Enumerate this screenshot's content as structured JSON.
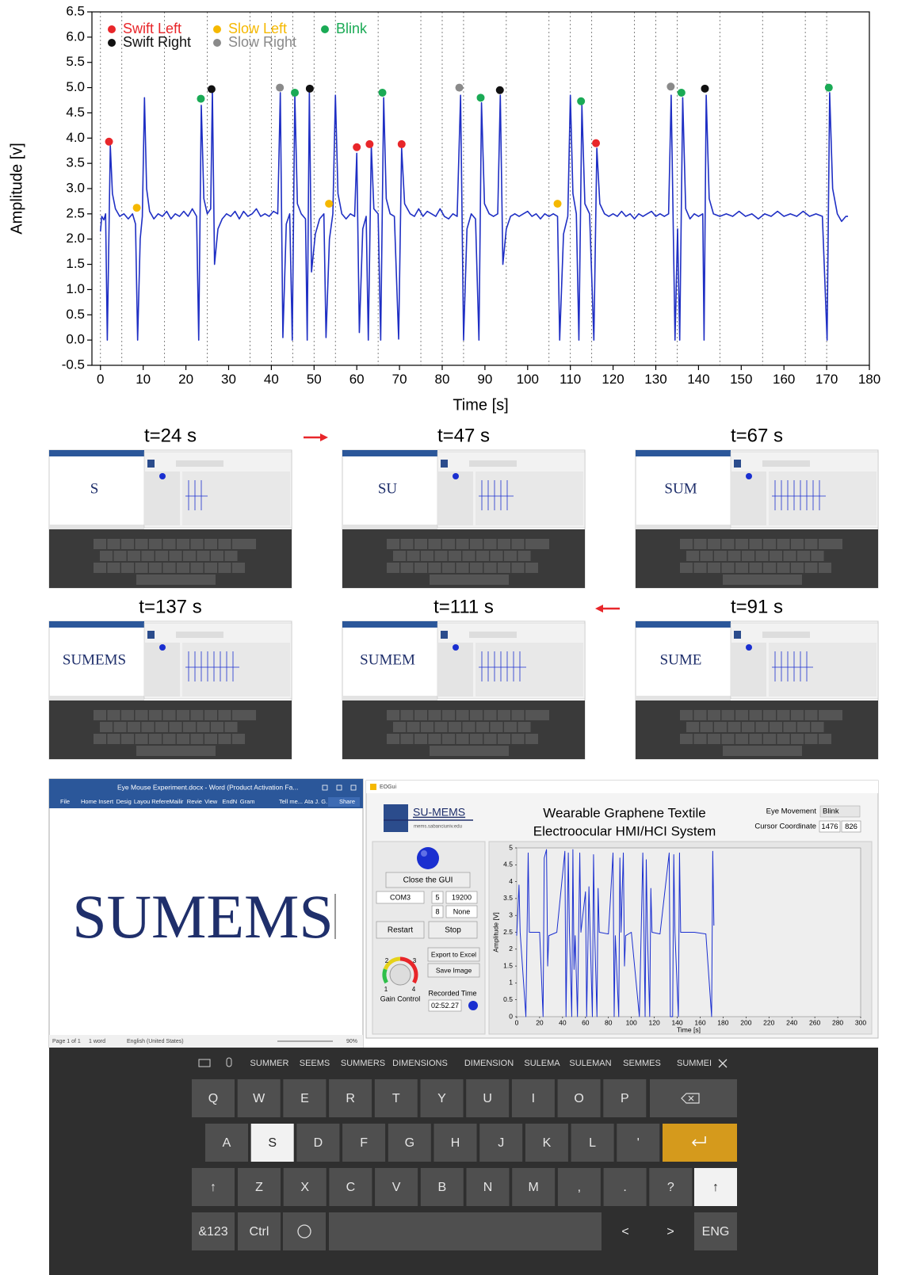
{
  "chart_data": [
    {
      "type": "line",
      "xlabel": "Time [s]",
      "ylabel": "Amplitude [v]",
      "xlim": [
        -2,
        180
      ],
      "ylim": [
        -0.5,
        6.5
      ],
      "xticks": [
        0,
        10,
        20,
        30,
        40,
        50,
        60,
        70,
        80,
        90,
        100,
        110,
        120,
        130,
        140,
        150,
        160,
        170,
        180
      ],
      "yticks": [
        -0.5,
        {
          "value": 0,
          "label": "0.0"
        },
        0.5,
        {
          "value": 1,
          "label": "1.0"
        },
        1.5,
        {
          "value": 2,
          "label": "2.0"
        },
        2.5,
        {
          "value": 3,
          "label": "3.0"
        },
        3.5,
        {
          "value": 4,
          "label": "4.0"
        },
        4.5,
        {
          "value": 5,
          "label": "5.0"
        },
        5.5,
        {
          "value": 6,
          "label": "6.0"
        },
        6.5
      ],
      "event_lines": [
        0,
        5,
        15,
        25,
        35,
        40,
        45,
        50,
        55,
        65,
        75,
        80,
        85,
        95,
        105,
        110,
        115,
        125,
        130,
        135,
        145,
        155,
        165,
        170
      ],
      "x": [
        0,
        0.3,
        0.8,
        1.2,
        1.6,
        2.3,
        2.8,
        3.5,
        4.5,
        5.5,
        6.5,
        7.5,
        8.2,
        8.7,
        9.3,
        9.8,
        10.3,
        10.8,
        11.5,
        12.5,
        13.5,
        14.5,
        15.5,
        16.5,
        17.5,
        18.5,
        19.5,
        20.5,
        21.5,
        22.5,
        23,
        23.6,
        24.2,
        25,
        25.8,
        26.2,
        26.7,
        27.5,
        28.5,
        29.5,
        30.5,
        31.5,
        32.5,
        33.5,
        34.5,
        35.5,
        36.5,
        37.5,
        38.5,
        39.5,
        40.5,
        41.5,
        42.1,
        42.7,
        43.5,
        44.3,
        44.9,
        45.5,
        46.1,
        47,
        48,
        48.4,
        48.9,
        49.4,
        50.3,
        51.3,
        52.3,
        52.8,
        53.6,
        54.4,
        55,
        55.6,
        56.5,
        57.5,
        58.5,
        59.5,
        60,
        60.6,
        61.4,
        62.2,
        62.7,
        63.4,
        64,
        65,
        65.6,
        66.3,
        66.9,
        67.8,
        68.8,
        69.8,
        70.5,
        71.2,
        72.5,
        73.5,
        74.5,
        75.5,
        76.5,
        77.5,
        78.5,
        79.5,
        80.5,
        81.5,
        82.5,
        83.5,
        84.3,
        85,
        85.8,
        86.8,
        87.8,
        88.6,
        89.2,
        89.9,
        91,
        92,
        93,
        93.6,
        94.2,
        95,
        96,
        97,
        98,
        99,
        100,
        101,
        102,
        103,
        104,
        105,
        106,
        107,
        107.5,
        108.4,
        109.4,
        110,
        110.6,
        111.4,
        112,
        112.7,
        113.4,
        114.5,
        115.5,
        116.2,
        116.9,
        118,
        119,
        120,
        121,
        122,
        123,
        124,
        125,
        126,
        127,
        128,
        129,
        130,
        131,
        132,
        133,
        133.6,
        134.5,
        135.1,
        135.6,
        136.3,
        137,
        138,
        139,
        140,
        141,
        141.3,
        141.8,
        142.5,
        143.5,
        145,
        146.5,
        148,
        149.5,
        151,
        152.5,
        154,
        155.5,
        157,
        158.5,
        160,
        161.5,
        163,
        164.5,
        166,
        167.5,
        169,
        170.1,
        170.7,
        171.4,
        172.5,
        173.5,
        174.5,
        175
      ],
      "series": [
        {
          "color": "#1f2fc4",
          "values": [
            2.15,
            2.45,
            2.38,
            2.5,
            0,
            3.85,
            2.9,
            2.6,
            2.45,
            2.5,
            2.4,
            2.5,
            2.3,
            0,
            2.0,
            2.45,
            4.8,
            3.0,
            2.55,
            2.4,
            2.5,
            2.45,
            2.55,
            2.4,
            2.5,
            2.45,
            2.55,
            2.45,
            2.6,
            2.45,
            0,
            4.65,
            2.8,
            2.5,
            2.6,
            4.95,
            1.5,
            2.2,
            2.4,
            2.5,
            2.45,
            2.55,
            2.4,
            2.55,
            2.45,
            2.5,
            2.6,
            2.45,
            2.5,
            2.45,
            2.55,
            2.5,
            4.9,
            0.05,
            2.3,
            2.5,
            0,
            4.85,
            2.7,
            2.5,
            2.4,
            0,
            4.95,
            1.35,
            2.1,
            2.4,
            2.5,
            0.05,
            2.0,
            2.5,
            4.85,
            2.9,
            2.5,
            2.4,
            2.5,
            2.45,
            3.7,
            0.15,
            2.2,
            2.45,
            0,
            3.85,
            2.6,
            2.5,
            0,
            4.8,
            2.8,
            2.5,
            2.45,
            0.02,
            3.8,
            2.7,
            2.5,
            2.45,
            2.6,
            2.45,
            2.55,
            2.5,
            2.45,
            2.6,
            2.45,
            2.4,
            2.5,
            2.45,
            4.85,
            0,
            2.2,
            2.5,
            2.4,
            0,
            4.7,
            2.7,
            2.5,
            2.45,
            2.5,
            4.85,
            1.5,
            2.2,
            2.45,
            2.5,
            2.45,
            2.5,
            2.55,
            2.45,
            2.5,
            2.4,
            2.5,
            2.45,
            2.5,
            2.45,
            0,
            2.1,
            2.45,
            4.85,
            2.9,
            2.5,
            0,
            4.65,
            2.7,
            2.5,
            0,
            3.8,
            2.7,
            2.5,
            2.45,
            2.5,
            2.45,
            2.55,
            2.45,
            2.5,
            2.4,
            2.5,
            2.45,
            2.5,
            2.55,
            2.45,
            2.5,
            2.45,
            2.5,
            4.85,
            0,
            2.2,
            0,
            4.8,
            2.6,
            2.4,
            2.5,
            2.45,
            2.5,
            0,
            4.85,
            2.8,
            2.5,
            2.45,
            2.5,
            2.45,
            2.55,
            2.45,
            2.5,
            2.4,
            2.5,
            2.45,
            2.55,
            2.45,
            2.5,
            2.45,
            2.55,
            2.45,
            2.5,
            2.45,
            0,
            4.9,
            3.0,
            2.5,
            2.35,
            2.45,
            2.45
          ]
        }
      ],
      "markers": [
        {
          "name": "Swift Left",
          "color": "#e8262a",
          "x": [
            2,
            60,
            63,
            70.5,
            116
          ],
          "values": [
            3.93,
            3.82,
            3.88,
            3.88,
            3.9
          ]
        },
        {
          "name": "Slow Left",
          "color": "#f5b800",
          "x": [
            8.5,
            53.5,
            107
          ],
          "values": [
            2.62,
            2.7,
            2.7
          ]
        },
        {
          "name": "Blink",
          "color": "#1aaa55",
          "x": [
            23.5,
            45.5,
            66,
            89,
            112.5,
            136,
            170.5
          ],
          "values": [
            4.78,
            4.9,
            4.9,
            4.8,
            4.73,
            4.9,
            5.0
          ]
        },
        {
          "name": "Swift Right",
          "color": "#111111",
          "x": [
            26,
            49,
            93.5,
            141.5
          ],
          "values": [
            4.97,
            4.98,
            4.95,
            4.98
          ]
        },
        {
          "name": "Slow Right",
          "color": "#8a8a8a",
          "x": [
            42,
            84,
            133.5
          ],
          "values": [
            5.0,
            5.0,
            5.02
          ]
        }
      ]
    },
    {
      "type": "line",
      "xlabel": "Time [s]",
      "ylabel": "Amplitude [V]",
      "xlim": [
        0,
        300
      ],
      "ylim": [
        0,
        5
      ],
      "xticks": [
        0,
        20,
        40,
        60,
        80,
        100,
        120,
        140,
        160,
        180,
        200,
        220,
        240,
        260,
        280,
        300
      ],
      "yticks": [
        0,
        0.5,
        1,
        1.5,
        2,
        2.5,
        3,
        3.5,
        4,
        4.5,
        5
      ],
      "x": [
        0,
        2,
        3,
        8,
        10,
        11,
        20,
        23,
        24,
        26,
        27,
        28,
        35,
        42,
        43,
        45,
        46,
        48,
        49,
        50,
        51,
        53,
        55,
        56,
        60,
        61,
        63,
        64,
        66,
        67,
        68,
        70,
        71,
        72,
        80,
        84,
        85,
        86,
        89,
        90,
        91,
        93,
        94,
        95,
        100,
        107,
        110,
        111,
        112,
        113,
        114,
        116,
        117,
        118,
        125,
        133,
        134,
        136,
        137,
        138,
        141,
        142,
        143,
        155,
        165,
        170,
        171,
        172
      ],
      "series": [
        {
          "color": "#1b2fd0",
          "values": [
            2.4,
            3.9,
            2.5,
            0,
            4.85,
            2.5,
            2.5,
            0,
            4.7,
            4.95,
            1.5,
            2.4,
            2.5,
            4.9,
            0,
            4.85,
            2.5,
            0,
            4.95,
            1.4,
            2.4,
            0,
            4.85,
            2.5,
            3.7,
            0,
            3.85,
            2.5,
            0,
            4.8,
            2.5,
            0,
            3.8,
            2.5,
            2.45,
            4.85,
            0,
            2.4,
            0,
            4.7,
            2.5,
            4.85,
            1.5,
            2.4,
            2.5,
            0,
            4.85,
            2.5,
            0,
            4.65,
            2.5,
            0,
            3.8,
            2.5,
            2.45,
            4.85,
            0,
            0,
            4.8,
            2.5,
            0,
            4.85,
            2.5,
            2.5,
            2.45,
            0,
            4.9,
            2.7
          ]
        }
      ]
    }
  ],
  "panels": [
    {
      "time": "t=24 s",
      "typed": "S"
    },
    {
      "time": "t=47 s",
      "typed": "SU"
    },
    {
      "time": "t=67 s",
      "typed": "SUM"
    },
    {
      "time": "t=137 s",
      "typed": "SUMEMS"
    },
    {
      "time": "t=111 s",
      "typed": "SUMEM"
    },
    {
      "time": "t=91 s",
      "typed": "SUME"
    }
  ],
  "word": {
    "title": "Eye Mouse Experiment.docx - Word (Product Activation Fa...",
    "tabs": [
      "File",
      "Home",
      "Insert",
      "Desig",
      "Layou",
      "Refere",
      "Mailir",
      "Revie",
      "View",
      "EndN",
      "Gram"
    ],
    "tell": "Tell me...",
    "user": "Ata J. G.",
    "share": "Share",
    "text": "SUMEMS",
    "status": [
      "Page 1 of 1",
      "1 word",
      "English (United States)"
    ],
    "zoom": "90%"
  },
  "gui": {
    "window_title": "EOGui",
    "logo": "SU-MEMS",
    "logo_url": "mems.sabanciuniv.edu",
    "title": [
      "Wearable Graphene Textile",
      "Electroocular HMI/HCI System"
    ],
    "eye_movement_label": "Eye Movement",
    "eye_movement": "Blink",
    "cursor_label": "Cursor Coordinate",
    "cursor": [
      "1476",
      "826"
    ],
    "close_button": "Close the GUI",
    "port": "COM3",
    "data_bits": "5",
    "baud": "19200",
    "bits": "8",
    "parity": "None",
    "restart": "Restart",
    "stop": "Stop",
    "export": "Export to Excel",
    "save": "Save Image",
    "gain_label": "Gain Control",
    "gauge_labels": [
      "2",
      "3",
      "1",
      "4"
    ],
    "time_label": "Recorded Time",
    "time": "02:52.27"
  },
  "keyboard": {
    "suggestions": [
      "SUMMER",
      "SEEMS",
      "SUMMERS",
      "DIMENSIONS",
      "DIMENSION",
      "SULEMA",
      "SULEMAN",
      "SEMMES",
      "SUMMEI"
    ],
    "rows": [
      [
        "Q",
        "W",
        "E",
        "R",
        "T",
        "Y",
        "U",
        "I",
        "O",
        "P"
      ],
      [
        "A",
        "S",
        "D",
        "F",
        "G",
        "H",
        "J",
        "K",
        "L",
        "'"
      ],
      [
        "Z",
        "X",
        "C",
        "V",
        "B",
        "N",
        "M",
        ",",
        ".",
        "?"
      ]
    ],
    "shift": "↑",
    "bottom": [
      "&123",
      "Ctrl"
    ],
    "nav": [
      "<",
      ">",
      "ENG"
    ]
  }
}
